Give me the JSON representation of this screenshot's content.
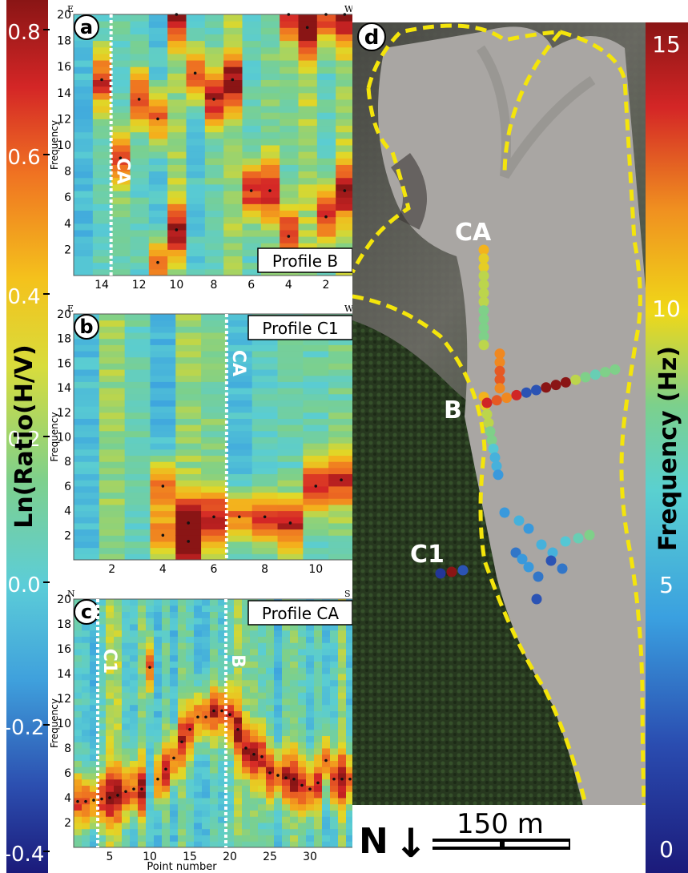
{
  "left_colorbar": {
    "label": "Ln(Ratio(H/V)",
    "ticks": [
      "0.8",
      "0.6",
      "0.4",
      "0.2",
      "0.0",
      "-0.2",
      "-0.4"
    ]
  },
  "right_colorbar": {
    "label": "Frequency (Hz)",
    "ticks": [
      "15",
      "10",
      "5",
      "0"
    ]
  },
  "panels": {
    "a": {
      "letter": "a",
      "title": "Profile B",
      "left_dir": "E",
      "right_dir": "W",
      "ylabel": "Frequency",
      "marker": "CA"
    },
    "b": {
      "letter": "b",
      "title": "Profile C1",
      "left_dir": "E",
      "right_dir": "W",
      "ylabel": "Frequency",
      "marker": "CA"
    },
    "c": {
      "letter": "c",
      "title": "Profile CA",
      "left_dir": "N",
      "right_dir": "S",
      "ylabel": "Frequency",
      "xlabel": "Point number",
      "marker1": "C1",
      "marker2": "B"
    },
    "d": {
      "letter": "d",
      "labels": [
        "CA",
        "B",
        "C1"
      ],
      "north": "N",
      "north_arrow": "↓",
      "scale": "150 m"
    }
  },
  "chart_data": [
    {
      "type": "heatmap",
      "panel": "a",
      "title": "Profile B",
      "ylabel": "Frequency",
      "xlim": [
        15.5,
        0.5
      ],
      "ylim": [
        0,
        20
      ],
      "xticks": [
        14,
        12,
        10,
        8,
        6,
        4,
        2
      ],
      "yticks": [
        2,
        4,
        6,
        8,
        10,
        12,
        14,
        16,
        18,
        20
      ],
      "marker_line_x": 13.5,
      "peak_points": [
        {
          "x": 14,
          "y": 15
        },
        {
          "x": 13,
          "y": 9
        },
        {
          "x": 12,
          "y": 13.5
        },
        {
          "x": 11,
          "y": 12
        },
        {
          "x": 10,
          "y": 20
        },
        {
          "x": 10,
          "y": 3.5
        },
        {
          "x": 9,
          "y": 15.5
        },
        {
          "x": 8,
          "y": 13.5
        },
        {
          "x": 7,
          "y": 15
        },
        {
          "x": 6,
          "y": 6.5
        },
        {
          "x": 5,
          "y": 6.5
        },
        {
          "x": 4,
          "y": 20
        },
        {
          "x": 4,
          "y": 3
        },
        {
          "x": 3,
          "y": 19
        },
        {
          "x": 2,
          "y": 20
        },
        {
          "x": 2,
          "y": 4.5
        },
        {
          "x": 1,
          "y": 20
        },
        {
          "x": 1,
          "y": 6.5
        },
        {
          "x": 11,
          "y": 1
        }
      ]
    },
    {
      "type": "heatmap",
      "panel": "b",
      "title": "Profile C1",
      "ylabel": "Frequency",
      "xlim": [
        0.5,
        11.5
      ],
      "ylim": [
        0,
        20
      ],
      "xticks": [
        2,
        4,
        6,
        8,
        10
      ],
      "yticks": [
        2,
        4,
        6,
        8,
        10,
        12,
        14,
        16,
        18,
        20
      ],
      "marker_line_x": 6.5,
      "peak_points": [
        {
          "x": 4,
          "y": 6
        },
        {
          "x": 4,
          "y": 2
        },
        {
          "x": 5,
          "y": 3
        },
        {
          "x": 5,
          "y": 1.5
        },
        {
          "x": 6,
          "y": 3.5
        },
        {
          "x": 7,
          "y": 3.5
        },
        {
          "x": 8,
          "y": 3.5
        },
        {
          "x": 9,
          "y": 3
        },
        {
          "x": 10,
          "y": 6
        },
        {
          "x": 11,
          "y": 6.5
        }
      ]
    },
    {
      "type": "heatmap",
      "panel": "c",
      "title": "Profile CA",
      "ylabel": "Frequency",
      "xlabel": "Point number",
      "xlim": [
        0.5,
        35.5
      ],
      "ylim": [
        0,
        20
      ],
      "xticks": [
        5,
        10,
        15,
        20,
        25,
        30
      ],
      "yticks": [
        2,
        4,
        6,
        8,
        10,
        12,
        14,
        16,
        18,
        20
      ],
      "marker_lines_x": [
        3.5,
        19.5
      ],
      "peak_points": [
        {
          "x": 1,
          "y": 3.7
        },
        {
          "x": 2,
          "y": 3.7
        },
        {
          "x": 3,
          "y": 3.8
        },
        {
          "x": 4,
          "y": 3.9
        },
        {
          "x": 5,
          "y": 4.0
        },
        {
          "x": 6,
          "y": 4.2
        },
        {
          "x": 7,
          "y": 4.5
        },
        {
          "x": 8,
          "y": 4.7
        },
        {
          "x": 9,
          "y": 4.7
        },
        {
          "x": 10,
          "y": 14.5
        },
        {
          "x": 11,
          "y": 5.5
        },
        {
          "x": 12,
          "y": 6.3
        },
        {
          "x": 13,
          "y": 7.2
        },
        {
          "x": 14,
          "y": 8.5
        },
        {
          "x": 15,
          "y": 9.5
        },
        {
          "x": 16,
          "y": 10.5
        },
        {
          "x": 17,
          "y": 10.5
        },
        {
          "x": 18,
          "y": 11
        },
        {
          "x": 19,
          "y": 11
        },
        {
          "x": 20,
          "y": 10.7
        },
        {
          "x": 21,
          "y": 9.5
        },
        {
          "x": 22,
          "y": 8.0
        },
        {
          "x": 23,
          "y": 7.5
        },
        {
          "x": 24,
          "y": 7.3
        },
        {
          "x": 25,
          "y": 6.0
        },
        {
          "x": 26,
          "y": 5.8
        },
        {
          "x": 27,
          "y": 5.6
        },
        {
          "x": 28,
          "y": 5.5
        },
        {
          "x": 29,
          "y": 5.0
        },
        {
          "x": 30,
          "y": 4.7
        },
        {
          "x": 31,
          "y": 5.2
        },
        {
          "x": 32,
          "y": 7.0
        },
        {
          "x": 33,
          "y": 5.5
        },
        {
          "x": 34,
          "y": 5.5
        },
        {
          "x": 35,
          "y": 5.5
        }
      ]
    },
    {
      "type": "scatter",
      "panel": "d",
      "description_units": "frequency Hz per survey point (color)",
      "profiles": {
        "CA": [
          11,
          10,
          10,
          9,
          9,
          9,
          9,
          8,
          8,
          8,
          8,
          9,
          12,
          12,
          13,
          13,
          12,
          11,
          10,
          9,
          9,
          8,
          8,
          6,
          5,
          5,
          4
        ],
        "B": [
          14,
          13,
          12,
          14,
          2,
          2,
          15,
          15,
          15,
          9,
          8,
          7,
          8,
          8
        ],
        "C1": [
          1,
          15,
          2
        ]
      }
    }
  ]
}
